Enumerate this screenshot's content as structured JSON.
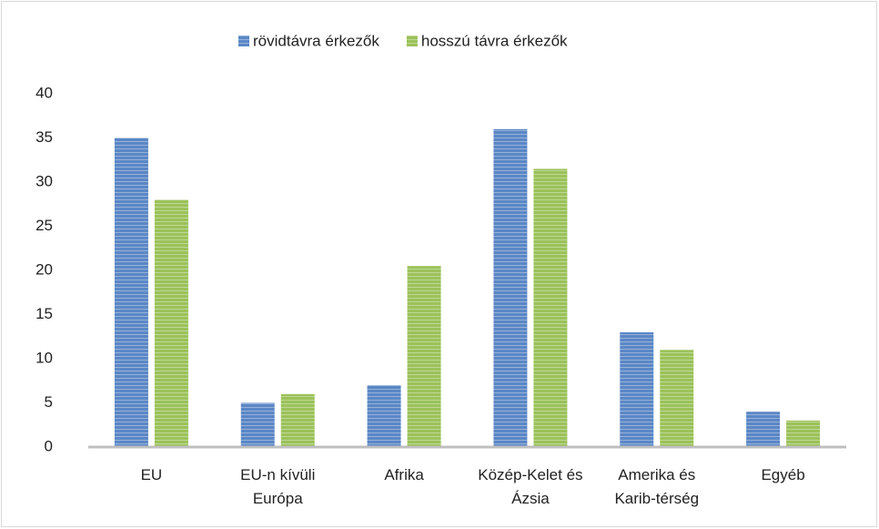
{
  "chart_data": {
    "type": "bar",
    "categories": [
      "EU",
      "EU-n kívüli Európa",
      "Afrika",
      "Közép-Kelet és Ázsia",
      "Amerika és Karib-térség",
      "Egyéb"
    ],
    "series": [
      {
        "name": "rövidtávra érkezők",
        "color": "#5b87c5",
        "values": [
          35,
          5,
          7,
          36,
          13,
          4
        ]
      },
      {
        "name": "hosszú távra érkezők",
        "color": "#9bc25a",
        "values": [
          28,
          6,
          20.5,
          31.5,
          11,
          3
        ]
      }
    ],
    "ylim": [
      0,
      40
    ],
    "yticks": [
      0,
      5,
      10,
      15,
      20,
      25,
      30,
      35,
      40
    ],
    "grid": false,
    "legend": "top"
  }
}
